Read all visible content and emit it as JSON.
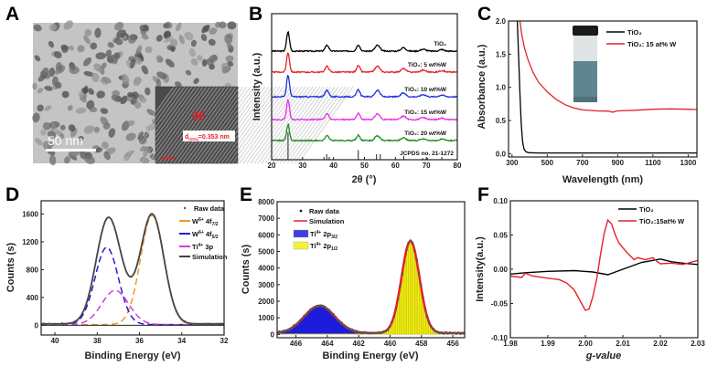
{
  "panels": {
    "a": "A",
    "b": "B",
    "c": "C",
    "d": "D",
    "e": "E",
    "f": "F"
  },
  "tem": {
    "scale_label": "50 nm",
    "d_label_main": "d",
    "d_label_sub": "(101)",
    "d_label_rest": "=0.353 nm",
    "inset_bar_color": "#e8202a"
  },
  "chart_data": [
    {
      "id": "B",
      "type": "line",
      "xlabel": "2θ (°)",
      "ylabel": "Intensity (a.u.)",
      "xlim": [
        20,
        80
      ],
      "ylim": [
        -0.84,
        5.56
      ],
      "xticks": [
        20,
        30,
        40,
        50,
        60,
        70,
        80
      ],
      "peaks": [
        [
          25.3,
          1.0,
          1.1
        ],
        [
          37.9,
          0.3,
          1.4
        ],
        [
          48.0,
          0.33,
          1.3
        ],
        [
          54.2,
          0.3,
          1.8
        ],
        [
          62.6,
          0.18,
          1.8
        ],
        [
          69.0,
          0.1,
          2.0
        ],
        [
          75.0,
          0.08,
          1.8
        ]
      ],
      "series": [
        {
          "name": "TiO₂",
          "offset": 3.92,
          "scale": 0.85,
          "color": "#000000"
        },
        {
          "name": "TiO₂: 5 wt%W",
          "offset": 3.0,
          "scale": 0.85,
          "color": "#e8202a"
        },
        {
          "name": "TiO₂: 10 wt%W",
          "offset": 1.92,
          "scale": 0.95,
          "color": "#1f2fe0"
        },
        {
          "name": "TiO₂: 15 wt%W",
          "offset": 0.92,
          "scale": 0.85,
          "color": "#e62ee6"
        },
        {
          "name": "TiO₂: 20 wt%W",
          "offset": 0.0,
          "scale": 0.7,
          "color": "#1e8c1e"
        }
      ],
      "reference": {
        "name": "JCPDS no. 21-1272",
        "x": [
          25.3,
          36.9,
          37.8,
          38.6,
          48.0,
          53.9,
          55.1,
          62.7,
          68.8,
          70.3,
          75.0
        ],
        "intensity": [
          100,
          10,
          20,
          10,
          35,
          20,
          20,
          14,
          6,
          7,
          10
        ]
      }
    },
    {
      "id": "C",
      "type": "line",
      "xlabel": "Wavelength (nm)",
      "ylabel": "Absorbance (a.u.)",
      "xlim": [
        280,
        1350
      ],
      "ylim": [
        -0.05,
        2.0
      ],
      "xticks": [
        300,
        500,
        700,
        900,
        1100,
        1300
      ],
      "yticks": [
        0.0,
        0.5,
        1.0,
        1.5,
        2.0
      ],
      "legend": "top-right",
      "series": [
        {
          "name": "TiO₂",
          "color": "#000000",
          "points": [
            [
              330,
              2.0
            ],
            [
              338,
              1.4
            ],
            [
              345,
              0.9
            ],
            [
              352,
              0.45
            ],
            [
              360,
              0.18
            ],
            [
              368,
              0.07
            ],
            [
              378,
              0.03
            ],
            [
              395,
              0.015
            ],
            [
              450,
              0.01
            ],
            [
              1350,
              0.01
            ]
          ]
        },
        {
          "name": "TiO₂: 15 at% W",
          "color": "#e8202a",
          "points": [
            [
              345,
              2.0
            ],
            [
              355,
              1.8
            ],
            [
              370,
              1.6
            ],
            [
              390,
              1.42
            ],
            [
              420,
              1.22
            ],
            [
              450,
              1.08
            ],
            [
              500,
              0.93
            ],
            [
              550,
              0.82
            ],
            [
              600,
              0.74
            ],
            [
              650,
              0.69
            ],
            [
              700,
              0.66
            ],
            [
              780,
              0.645
            ],
            [
              850,
              0.64
            ],
            [
              870,
              0.625
            ],
            [
              900,
              0.645
            ],
            [
              1000,
              0.655
            ],
            [
              1100,
              0.67
            ],
            [
              1200,
              0.675
            ],
            [
              1300,
              0.67
            ],
            [
              1350,
              0.665
            ]
          ]
        }
      ]
    },
    {
      "id": "D",
      "type": "line",
      "xlabel": "Binding Energy (eV)",
      "ylabel": "Counts (s)",
      "xlim": [
        40.65,
        32
      ],
      "ylim": [
        -140,
        1790
      ],
      "xticks": [
        40,
        38,
        36,
        34,
        32
      ],
      "yticks": [
        0,
        400,
        800,
        1200,
        1600
      ],
      "baseline": 20,
      "legend": "top-right",
      "components": [
        {
          "label": [
            "W",
            "6+",
            " 4f",
            "7/2"
          ],
          "center": 35.4,
          "height": 1570,
          "fwhm": 1.3,
          "color": "#f0962a"
        },
        {
          "label": [
            "W",
            "6+",
            " 4f",
            "5/2"
          ],
          "center": 37.55,
          "height": 1110,
          "fwhm": 1.3,
          "color": "#2020d0"
        },
        {
          "label": [
            "Ti",
            "4+",
            " 3p",
            ""
          ],
          "center": 37.15,
          "height": 490,
          "fwhm": 1.5,
          "color": "#d838d8"
        }
      ],
      "raw_label": "Raw data",
      "sim_label": "Simulation",
      "sim_color": "#444444"
    },
    {
      "id": "E",
      "type": "area",
      "xlabel": "Binding Energy (eV)",
      "ylabel": "Counts (s)",
      "xlim": [
        467.2,
        455.25
      ],
      "ylim": [
        -200,
        8000
      ],
      "xticks": [
        466,
        464,
        462,
        460,
        458,
        456
      ],
      "yticks": [
        0,
        1000,
        2000,
        3000,
        4000,
        5000,
        6000,
        7000,
        8000
      ],
      "baseline": 80,
      "legend": "top-left",
      "components": [
        {
          "label": [
            "Ti",
            "4+",
            " 2p",
            "3/2"
          ],
          "center": 464.5,
          "height": 1650,
          "fwhm": 2.3,
          "color": "#1010d8"
        },
        {
          "label": [
            "Ti",
            "4+",
            " 2p",
            "1/2"
          ],
          "center": 458.7,
          "height": 5550,
          "fwhm": 1.35,
          "color": "#f5f000"
        }
      ],
      "raw_label": "Raw data",
      "sim_label": "Simulation",
      "sim_color": "#e8202a"
    },
    {
      "id": "F",
      "type": "line",
      "xlabel": "g-value",
      "ylabel": "Intensity(a.u.)",
      "xlim": [
        1.98,
        2.03
      ],
      "ylim": [
        -0.1,
        0.1
      ],
      "xticks": [
        1.98,
        1.99,
        2.0,
        2.01,
        2.02,
        2.03
      ],
      "yticks": [
        -0.1,
        -0.05,
        0.0,
        0.05,
        0.1
      ],
      "legend": "top-right",
      "series": [
        {
          "name": "TiO₂",
          "color": "#000000",
          "points": [
            [
              1.98,
              -0.007
            ],
            [
              1.984,
              -0.005
            ],
            [
              1.99,
              -0.003
            ],
            [
              1.997,
              -0.002
            ],
            [
              2.002,
              -0.004
            ],
            [
              2.004,
              -0.006
            ],
            [
              2.006,
              -0.008
            ],
            [
              2.008,
              -0.004
            ],
            [
              2.01,
              0.0
            ],
            [
              2.015,
              0.01
            ],
            [
              2.02,
              0.015
            ],
            [
              2.023,
              0.011
            ],
            [
              2.026,
              0.009
            ],
            [
              2.03,
              0.007
            ]
          ]
        },
        {
          "name": "TiO₂:15at% W",
          "color": "#e8202a",
          "points": [
            [
              1.98,
              -0.01
            ],
            [
              1.983,
              -0.012
            ],
            [
              1.984,
              -0.006
            ],
            [
              1.986,
              -0.01
            ],
            [
              1.99,
              -0.013
            ],
            [
              1.993,
              -0.015
            ],
            [
              1.995,
              -0.02
            ],
            [
              1.997,
              -0.03
            ],
            [
              1.999,
              -0.05
            ],
            [
              2.0,
              -0.06
            ],
            [
              2.001,
              -0.058
            ],
            [
              2.002,
              -0.04
            ],
            [
              2.003,
              -0.015
            ],
            [
              2.004,
              0.02
            ],
            [
              2.005,
              0.052
            ],
            [
              2.006,
              0.072
            ],
            [
              2.007,
              0.066
            ],
            [
              2.008,
              0.05
            ],
            [
              2.009,
              0.038
            ],
            [
              2.011,
              0.025
            ],
            [
              2.013,
              0.014
            ],
            [
              2.014,
              0.017
            ],
            [
              2.016,
              0.014
            ],
            [
              2.018,
              0.017
            ],
            [
              2.019,
              0.012
            ],
            [
              2.02,
              0.008
            ],
            [
              2.023,
              0.009
            ],
            [
              2.026,
              0.007
            ],
            [
              2.028,
              0.01
            ],
            [
              2.03,
              0.013
            ]
          ]
        }
      ]
    }
  ]
}
